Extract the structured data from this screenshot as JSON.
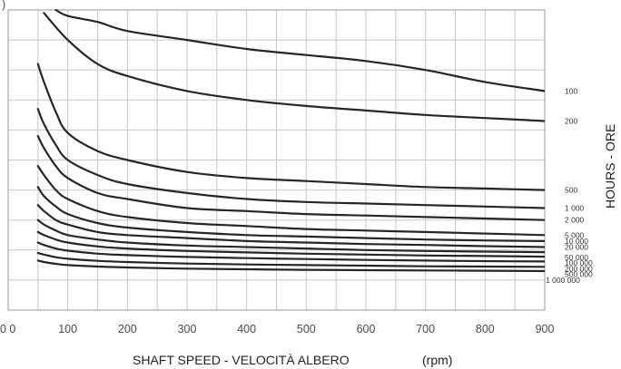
{
  "chart_data": {
    "type": "line",
    "xlabel_main": "SHAFT SPEED - VELOCITÀ ALBERO",
    "xlabel_unit": "(rpm)",
    "ylabel": "HOURS - ORE",
    "x_ticks": [
      "0 0",
      "100",
      "200",
      "300",
      "400",
      "500",
      "600",
      "700",
      "800",
      "900"
    ],
    "xlim": [
      0,
      900
    ],
    "grid": true,
    "corner_label": ")",
    "series": [
      {
        "name": "100",
        "x": [
          80,
          100,
          150,
          200,
          300,
          400,
          500,
          600,
          700,
          800,
          900
        ],
        "y": [
          1.0,
          0.98,
          0.96,
          0.93,
          0.9,
          0.87,
          0.85,
          0.83,
          0.8,
          0.76,
          0.73
        ]
      },
      {
        "name": "200",
        "x": [
          60,
          100,
          150,
          200,
          300,
          400,
          500,
          600,
          700,
          800,
          900
        ],
        "y": [
          0.99,
          0.9,
          0.82,
          0.78,
          0.73,
          0.7,
          0.68,
          0.665,
          0.65,
          0.64,
          0.63
        ]
      },
      {
        "name": "500",
        "x": [
          50,
          60,
          80,
          100,
          150,
          200,
          300,
          400,
          500,
          600,
          700,
          800,
          900
        ],
        "y": [
          0.82,
          0.76,
          0.66,
          0.59,
          0.53,
          0.5,
          0.46,
          0.44,
          0.43,
          0.42,
          0.41,
          0.405,
          0.4
        ]
      },
      {
        "name": "1 000",
        "x": [
          50,
          60,
          80,
          100,
          150,
          200,
          300,
          400,
          500,
          600,
          700,
          800,
          900
        ],
        "y": [
          0.67,
          0.62,
          0.55,
          0.5,
          0.45,
          0.42,
          0.39,
          0.37,
          0.36,
          0.355,
          0.35,
          0.345,
          0.34
        ]
      },
      {
        "name": "2 000",
        "x": [
          50,
          60,
          80,
          100,
          150,
          200,
          300,
          400,
          500,
          600,
          700,
          800,
          900
        ],
        "y": [
          0.58,
          0.54,
          0.48,
          0.44,
          0.39,
          0.37,
          0.34,
          0.33,
          0.32,
          0.315,
          0.31,
          0.305,
          0.3
        ]
      },
      {
        "name": "5 000",
        "x": [
          50,
          60,
          80,
          100,
          150,
          200,
          300,
          400,
          500,
          600,
          700,
          800,
          900
        ],
        "y": [
          0.48,
          0.45,
          0.4,
          0.37,
          0.33,
          0.31,
          0.29,
          0.28,
          0.27,
          0.265,
          0.26,
          0.255,
          0.25
        ]
      },
      {
        "name": "10 000",
        "x": [
          50,
          60,
          80,
          100,
          150,
          200,
          300,
          400,
          500,
          600,
          700,
          800,
          900
        ],
        "y": [
          0.41,
          0.38,
          0.345,
          0.32,
          0.29,
          0.275,
          0.26,
          0.25,
          0.245,
          0.24,
          0.235,
          0.232,
          0.23
        ]
      },
      {
        "name": "20 000",
        "x": [
          50,
          60,
          80,
          100,
          150,
          200,
          300,
          400,
          500,
          600,
          700,
          800,
          900
        ],
        "y": [
          0.35,
          0.33,
          0.3,
          0.285,
          0.26,
          0.25,
          0.24,
          0.23,
          0.225,
          0.22,
          0.217,
          0.213,
          0.21
        ]
      },
      {
        "name": "50 000",
        "x": [
          50,
          60,
          80,
          100,
          150,
          200,
          300,
          400,
          500,
          600,
          700,
          800,
          900
        ],
        "y": [
          0.3,
          0.285,
          0.265,
          0.25,
          0.235,
          0.225,
          0.215,
          0.21,
          0.205,
          0.2,
          0.197,
          0.195,
          0.193
        ]
      },
      {
        "name": "100 000",
        "x": [
          50,
          60,
          80,
          100,
          150,
          200,
          300,
          400,
          500,
          600,
          700,
          800,
          900
        ],
        "y": [
          0.26,
          0.25,
          0.235,
          0.225,
          0.212,
          0.205,
          0.197,
          0.192,
          0.188,
          0.185,
          0.182,
          0.18,
          0.178
        ]
      },
      {
        "name": "200 000",
        "x": [
          50,
          60,
          80,
          100,
          150,
          200,
          300,
          400,
          500,
          600,
          700,
          800,
          900
        ],
        "y": [
          0.225,
          0.217,
          0.205,
          0.198,
          0.188,
          0.183,
          0.177,
          0.173,
          0.17,
          0.167,
          0.165,
          0.163,
          0.162
        ]
      },
      {
        "name": "500 000",
        "x": [
          50,
          60,
          80,
          100,
          150,
          200,
          300,
          400,
          500,
          600,
          700,
          800,
          900
        ],
        "y": [
          0.19,
          0.185,
          0.176,
          0.171,
          0.164,
          0.16,
          0.155,
          0.152,
          0.15,
          0.148,
          0.146,
          0.145,
          0.144
        ]
      },
      {
        "name": "1 000 000",
        "x": [
          50,
          60,
          80,
          100,
          150,
          200,
          300,
          400,
          500,
          600,
          700,
          800,
          900
        ],
        "y": [
          0.165,
          0.16,
          0.154,
          0.15,
          0.145,
          0.142,
          0.138,
          0.136,
          0.134,
          0.133,
          0.132,
          0.131,
          0.13
        ]
      }
    ]
  }
}
